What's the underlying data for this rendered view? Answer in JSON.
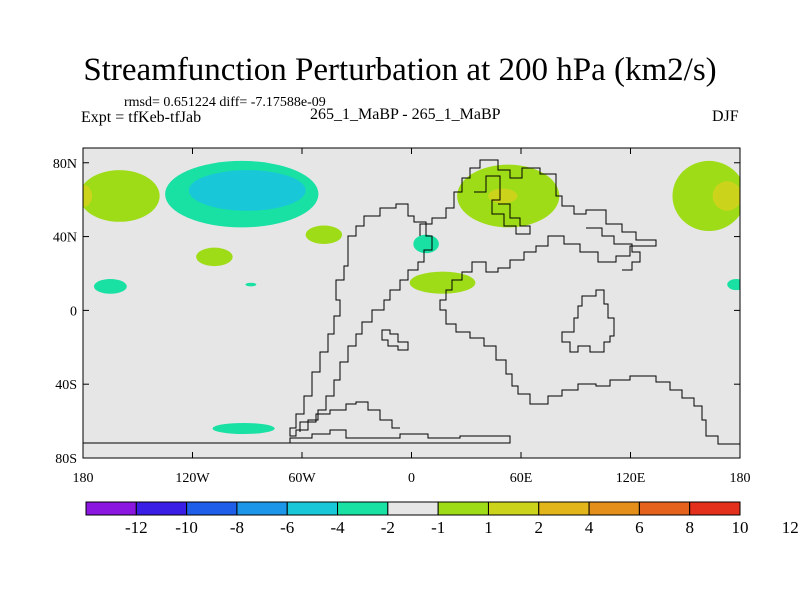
{
  "title": "Streamfunction Perturbation at 200 hPa (km2/s)",
  "stats": "rmsd= 0.651224 diff= -7.17588e-09",
  "experiment": "Expt = tfKeb-tfJab",
  "runs": "265_1_MaBP - 265_1_MaBP",
  "season": "DJF",
  "lat_ticks": [
    {
      "label": "80N",
      "lat": 80
    },
    {
      "label": "40N",
      "lat": 40
    },
    {
      "label": "0",
      "lat": 0
    },
    {
      "label": "40S",
      "lat": -40
    },
    {
      "label": "80S",
      "lat": -80
    }
  ],
  "lon_ticks": [
    {
      "label": "180",
      "lon": -180
    },
    {
      "label": "120W",
      "lon": -120
    },
    {
      "label": "60W",
      "lon": -60
    },
    {
      "label": "0",
      "lon": 0
    },
    {
      "label": "60E",
      "lon": 60
    },
    {
      "label": "120E",
      "lon": 120
    },
    {
      "label": "180",
      "lon": 180
    }
  ],
  "colorbar": {
    "colors": [
      "#8b16e0",
      "#3a1ee6",
      "#1e5ee8",
      "#1c96e8",
      "#19c8d8",
      "#19e0a3",
      "#e6e6e6",
      "#9fdc18",
      "#cbd41a",
      "#e2b61a",
      "#e48f1a",
      "#e5621c",
      "#e3301c"
    ],
    "labels": [
      "-12",
      "-10",
      "-8",
      "-6",
      "-4",
      "-2",
      "-1",
      "1",
      "2",
      "4",
      "6",
      "8",
      "10",
      "12"
    ]
  },
  "anomalies": [
    {
      "lon": -160,
      "lat": 62,
      "rlon": 22,
      "rlat": 14,
      "level": 1
    },
    {
      "lon": -180,
      "lat": 62,
      "rlon": 5,
      "rlat": 6,
      "level": 2
    },
    {
      "lon": -93,
      "lat": 63,
      "rlon": 42,
      "rlat": 18,
      "level": -1
    },
    {
      "lon": -90,
      "lat": 65,
      "rlon": 32,
      "rlat": 11,
      "level": -2
    },
    {
      "lon": 53,
      "lat": 62,
      "rlon": 28,
      "rlat": 17,
      "level": 1
    },
    {
      "lon": 50,
      "lat": 62,
      "rlon": 8,
      "rlat": 4,
      "level": 2
    },
    {
      "lon": 163,
      "lat": 62,
      "rlon": 20,
      "rlat": 19,
      "level": 1
    },
    {
      "lon": 173,
      "lat": 62,
      "rlon": 8,
      "rlat": 8,
      "level": 2
    },
    {
      "lon": -48,
      "lat": 41,
      "rlon": 10,
      "rlat": 5,
      "level": 1
    },
    {
      "lon": 8,
      "lat": 36,
      "rlon": 7,
      "rlat": 5,
      "level": -1
    },
    {
      "lon": -108,
      "lat": 29,
      "rlon": 10,
      "rlat": 5,
      "level": 1
    },
    {
      "lon": 17,
      "lat": 15,
      "rlon": 18,
      "rlat": 6,
      "level": 1
    },
    {
      "lon": -165,
      "lat": 13,
      "rlon": 9,
      "rlat": 4,
      "level": -1
    },
    {
      "lon": -88,
      "lat": 14,
      "rlon": 3,
      "rlat": 1,
      "level": -1
    },
    {
      "lon": 178,
      "lat": 14,
      "rlon": 5,
      "rlat": 3,
      "level": -1
    },
    {
      "lon": -92,
      "lat": -64,
      "rlon": 17,
      "rlat": 3,
      "level": -1
    }
  ]
}
